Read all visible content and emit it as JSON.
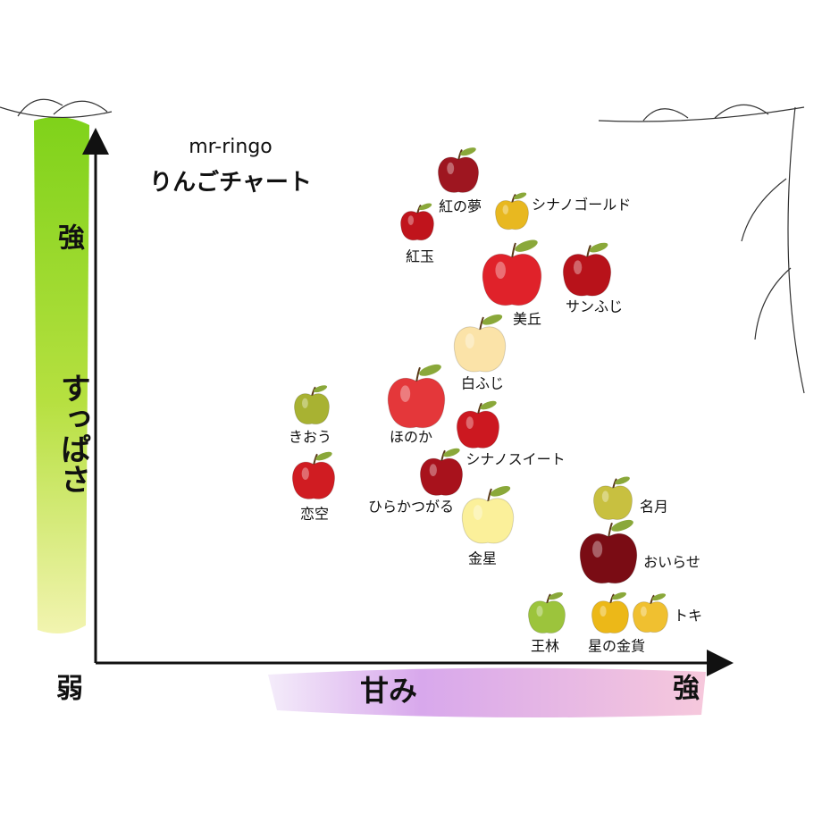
{
  "header": {
    "title": "mr-ringo",
    "subtitle": "りんごチャート"
  },
  "axes": {
    "y_label": "すっぱさ",
    "y_high": "強",
    "x_label": "甘み",
    "x_high": "強",
    "origin": "弱"
  },
  "nodes": [
    {
      "label": "紅の夢",
      "color": "#9e1620"
    },
    {
      "label": "シナノゴールド",
      "color": "#e8b820"
    },
    {
      "label": "紅玉",
      "color": "#c0141c"
    },
    {
      "label": "美丘",
      "color": "#e0222a"
    },
    {
      "label": "サンふじ",
      "color": "#b8121a"
    },
    {
      "label": "白ふじ",
      "color": "#fbe3a8"
    },
    {
      "label": "ほのか",
      "color": "#e4373a"
    },
    {
      "label": "きおう",
      "color": "#a8b232"
    },
    {
      "label": "シナノスイート",
      "color": "#cc1820"
    },
    {
      "label": "恋空",
      "color": "#d01c22"
    },
    {
      "label": "ひらかつがる",
      "color": "#a8121c"
    },
    {
      "label": "金星",
      "color": "#fbf09a"
    },
    {
      "label": "名月",
      "color": "#c8c040"
    },
    {
      "label": "おいらせ",
      "color": "#7a0c14"
    },
    {
      "label": "王林",
      "color": "#9cc43c"
    },
    {
      "label": "星の金貨",
      "color": "#ecb818"
    },
    {
      "label": "トキ",
      "color": "#f0c030"
    }
  ]
}
